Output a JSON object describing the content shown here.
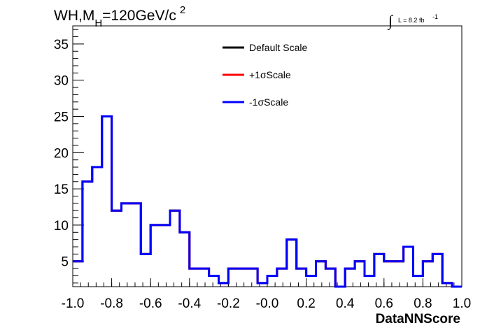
{
  "chart_data": {
    "type": "line",
    "title": {
      "main": "WH,M",
      "subscript": "H",
      "rest": "=120GeV/c",
      "superscript": "2"
    },
    "luminosity": {
      "integral_symbol": "∫",
      "text": "L = 8.2 fb",
      "exponent": "-1"
    },
    "xlabel": "DataNNScore",
    "ylabel": "",
    "xlim": [
      -1.0,
      1.0
    ],
    "ylim": [
      1.5,
      37.5
    ],
    "x_ticks": [
      {
        "value": -1.0,
        "label": "-1.0"
      },
      {
        "value": -0.8,
        "label": "-0.8"
      },
      {
        "value": -0.6,
        "label": "-0.6"
      },
      {
        "value": -0.4,
        "label": "-0.4"
      },
      {
        "value": -0.2,
        "label": "-0.2"
      },
      {
        "value": 0.0,
        "label": "-0.0"
      },
      {
        "value": 0.2,
        "label": "0.2"
      },
      {
        "value": 0.4,
        "label": "0.4"
      },
      {
        "value": 0.6,
        "label": "0.6"
      },
      {
        "value": 0.8,
        "label": "0.8"
      },
      {
        "value": 1.0,
        "label": "1.0"
      }
    ],
    "y_ticks": [
      {
        "value": 5,
        "label": "5"
      },
      {
        "value": 10,
        "label": "10"
      },
      {
        "value": 15,
        "label": "15"
      },
      {
        "value": 20,
        "label": "20"
      },
      {
        "value": 25,
        "label": "25"
      },
      {
        "value": 30,
        "label": "30"
      },
      {
        "value": 35,
        "label": "35"
      }
    ],
    "grid": false,
    "legend_placement": "top-center",
    "bin_edges": [
      -1.0,
      -0.95
    ],
    "bin_width": 0.05,
    "series": [
      {
        "name": "Default Scale",
        "color": "#000000",
        "values": [
          5,
          16,
          18,
          25,
          12,
          13,
          13,
          6,
          10,
          10,
          12,
          9,
          4,
          4,
          3,
          2,
          4,
          4,
          4,
          2,
          3,
          4,
          8,
          4,
          3,
          5,
          4,
          1.5,
          4,
          5,
          3,
          6,
          5,
          5,
          7,
          3,
          5,
          6,
          2,
          1.5
        ]
      },
      {
        "name": "+1σScale",
        "color": "#ff0000",
        "values": [
          5,
          16,
          18,
          25,
          12,
          13,
          13,
          6,
          10,
          10,
          12,
          9,
          4,
          4,
          3,
          2,
          4,
          4,
          4,
          2,
          3,
          4,
          8,
          4,
          3,
          5,
          4,
          1.5,
          4,
          5,
          3,
          6,
          5,
          5,
          7,
          3,
          5,
          6,
          2,
          1.5
        ]
      },
      {
        "name": "-1σScale",
        "color": "#0000ff",
        "values": [
          5,
          16,
          18,
          25,
          12,
          13,
          13,
          6,
          10,
          10,
          12,
          9,
          4,
          4,
          3,
          2,
          4,
          4,
          4,
          2,
          3,
          4,
          8,
          4,
          3,
          5,
          4,
          1.5,
          4,
          5,
          3,
          6,
          5,
          5,
          7,
          3,
          5,
          6,
          2,
          1.5
        ]
      }
    ]
  }
}
